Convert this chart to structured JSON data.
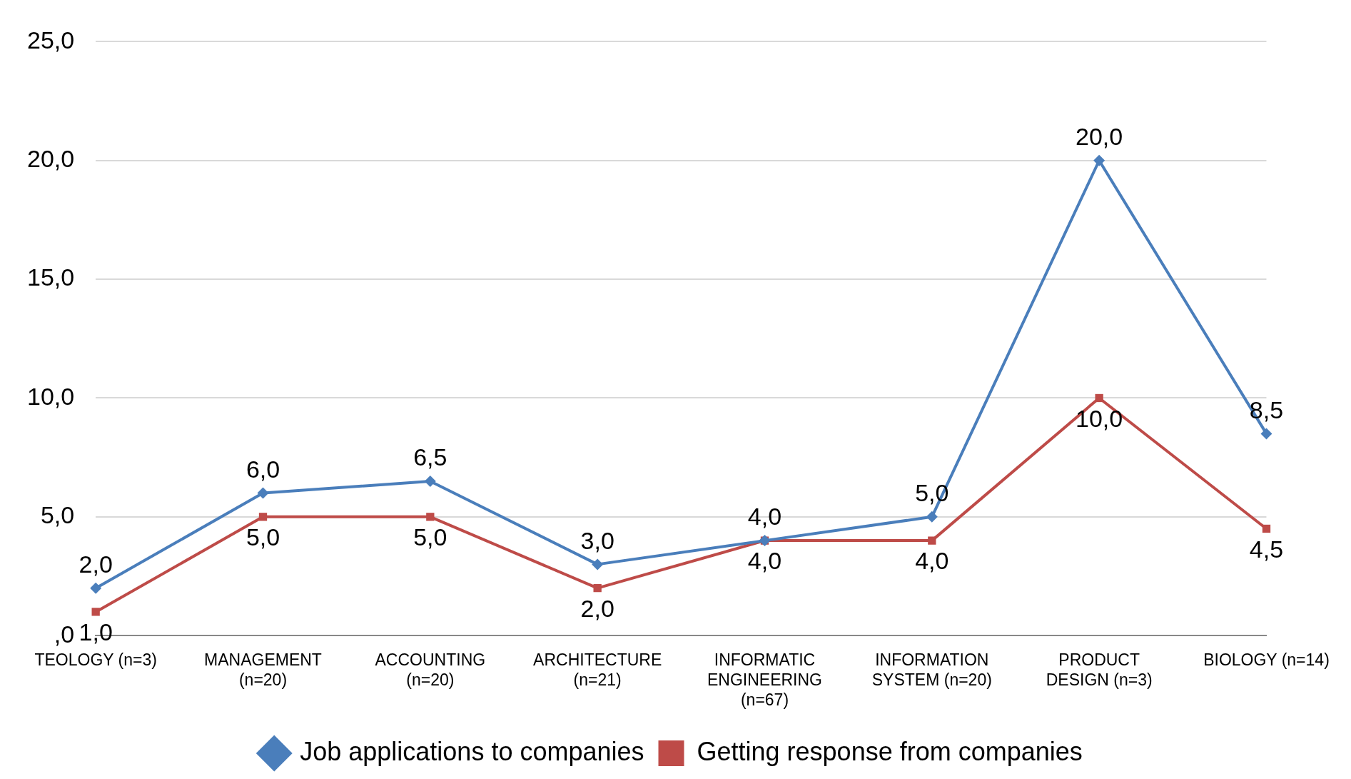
{
  "chart_data": {
    "type": "line",
    "categories": [
      "TEOLOGY (n=3)",
      "MANAGEMENT (n=20)",
      "ACCOUNTING (n=20)",
      "ARCHITECTURE (n=21)",
      "INFORMATIC ENGINEERING (n=67)",
      "INFORMATION SYSTEM (n=20)",
      "PRODUCT DESIGN (n=3)",
      "BIOLOGY (n=14)"
    ],
    "series": [
      {
        "name": "Job applications to companies",
        "color": "#4a7ebb",
        "marker": "diamond",
        "values": [
          2.0,
          6.0,
          6.5,
          3.0,
          4.0,
          5.0,
          20.0,
          8.5
        ],
        "value_labels": [
          "2,0",
          "6,0",
          "6,5",
          "3,0",
          "4,0",
          "5,0",
          "20,0",
          "8,5"
        ]
      },
      {
        "name": "Getting response from companies",
        "color": "#be4b48",
        "marker": "square",
        "values": [
          1.0,
          5.0,
          5.0,
          2.0,
          4.0,
          4.0,
          10.0,
          4.5
        ],
        "value_labels": [
          "1,0",
          "5,0",
          "5,0",
          "2,0",
          "4,0",
          "4,0",
          "10,0",
          "4,5"
        ]
      }
    ],
    "ylim": [
      0,
      25
    ],
    "yticks": [
      {
        "value": 0,
        "label": ",0"
      },
      {
        "value": 5,
        "label": "5,0"
      },
      {
        "value": 10,
        "label": "10,0"
      },
      {
        "value": 15,
        "label": "15,0"
      },
      {
        "value": 20,
        "label": "20,0"
      },
      {
        "value": 25,
        "label": "25,0"
      }
    ],
    "grid": "y",
    "legend": "bottom",
    "line_style": "solid"
  }
}
